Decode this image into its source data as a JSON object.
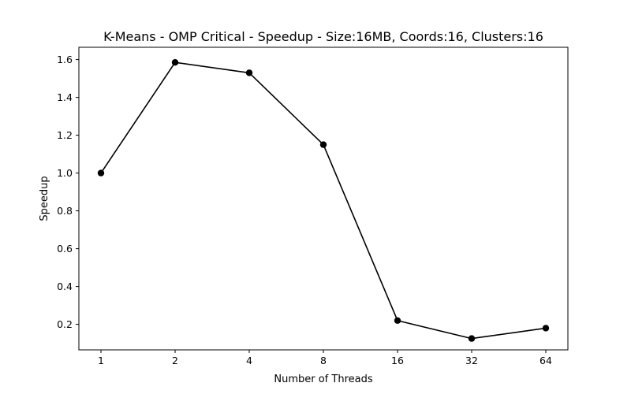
{
  "chart_data": {
    "type": "line",
    "title": "K-Means - OMP Critical - Speedup - Size:16MB, Coords:16, Clusters:16",
    "xlabel": "Number of Threads",
    "ylabel": "Speedup",
    "categories": [
      "1",
      "2",
      "4",
      "8",
      "16",
      "32",
      "64"
    ],
    "series": [
      {
        "values": [
          1.0,
          1.585,
          1.53,
          1.15,
          0.22,
          0.125,
          0.18
        ],
        "color": "#000000",
        "marker": "circle"
      }
    ],
    "ylim": [
      0.065,
      1.665
    ],
    "yticks": [
      0.2,
      0.4,
      0.6,
      0.8,
      1.0,
      1.2,
      1.4,
      1.6
    ],
    "ytick_labels": [
      "0.2",
      "0.4",
      "0.6",
      "0.8",
      "1.0",
      "1.2",
      "1.4",
      "1.6"
    ],
    "grid": false,
    "legend": "none"
  }
}
